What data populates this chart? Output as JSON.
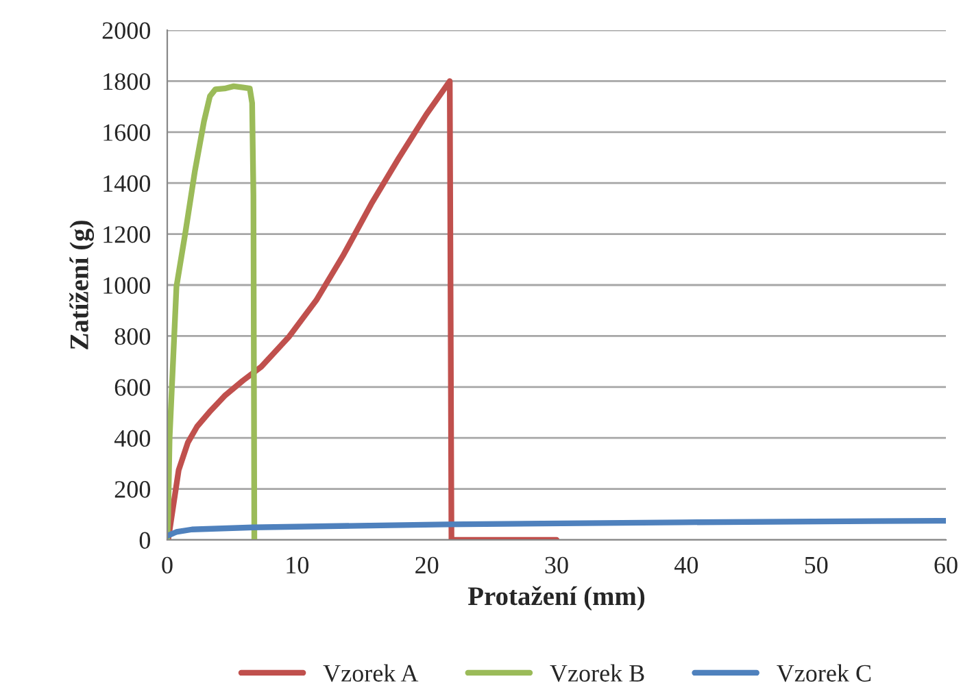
{
  "chart_data": {
    "type": "line",
    "xlabel": "Protažení (mm)",
    "ylabel": "Zatížení (g)",
    "xlim": [
      0,
      60
    ],
    "xticks": [
      0,
      10,
      20,
      30,
      40,
      50,
      60
    ],
    "ylim": [
      0,
      2000
    ],
    "yticks": [
      0,
      200,
      400,
      600,
      800,
      1000,
      1200,
      1400,
      1600,
      1800,
      2000
    ],
    "grid": "y",
    "legend": "bottom",
    "marker": "none",
    "line_style": "solid",
    "series": [
      {
        "name": "Vzorek A",
        "color": "#c0504d",
        "x": [
          0.07,
          0.88,
          1.59,
          2.3,
          3.36,
          4.42,
          5.83,
          7.24,
          9.36,
          11.48,
          13.6,
          15.72,
          17.84,
          19.96,
          21.77,
          21.9,
          30
        ],
        "values": [
          0,
          274,
          382,
          445,
          508,
          565,
          625,
          679,
          796,
          940,
          1120,
          1318,
          1498,
          1669,
          1800,
          0,
          0
        ]
      },
      {
        "name": "Vzorek B",
        "color": "#9bbb59",
        "x": [
          0,
          0.07,
          0.18,
          0.71,
          1.41,
          2.12,
          2.83,
          3.29,
          3.71,
          4.42,
          5.12,
          5.83,
          6.36,
          6.54,
          6.64,
          6.71
        ],
        "values": [
          0,
          94,
          400,
          994,
          1210,
          1444,
          1642,
          1741,
          1768,
          1771,
          1780,
          1775,
          1771,
          1714,
          1354,
          0
        ]
      },
      {
        "name": "Vzorek C",
        "color": "#4f81bd",
        "x": [
          0,
          0.7,
          1.9,
          6.6,
          21.5,
          39.7,
          59.4,
          60
        ],
        "values": [
          16,
          31,
          41,
          49,
          61,
          69,
          75,
          75
        ]
      }
    ]
  }
}
